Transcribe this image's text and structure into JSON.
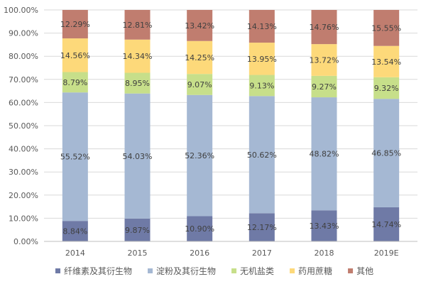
{
  "chart_data": {
    "type": "bar",
    "stacked": true,
    "percent": true,
    "title": "",
    "xlabel": "",
    "ylabel": "",
    "ylim": [
      0,
      100
    ],
    "y_ticks": [
      "0.00%",
      "10.00%",
      "20.00%",
      "30.00%",
      "40.00%",
      "50.00%",
      "60.00%",
      "70.00%",
      "80.00%",
      "90.00%",
      "100.00%"
    ],
    "categories": [
      "2014",
      "2015",
      "2016",
      "2017",
      "2018",
      "2019E"
    ],
    "grid": true,
    "legend_position": "bottom",
    "series": [
      {
        "name": "纤维素及其衍生物",
        "color": "#6f7aa6",
        "values": [
          8.84,
          9.87,
          10.9,
          12.17,
          13.43,
          14.74
        ],
        "labels": [
          "8.84%",
          "9.87%",
          "10.90%",
          "12.17%",
          "13.43%",
          "14.74%"
        ]
      },
      {
        "name": "淀粉及其衍生物",
        "color": "#a5b8d3",
        "values": [
          55.52,
          54.03,
          52.36,
          50.62,
          48.82,
          46.85
        ],
        "labels": [
          "55.52%",
          "54.03%",
          "52.36%",
          "50.62%",
          "48.82%",
          "46.85%"
        ]
      },
      {
        "name": "无机盐类",
        "color": "#c7df8a",
        "values": [
          8.79,
          8.95,
          9.07,
          9.13,
          9.27,
          9.32
        ],
        "labels": [
          "8.79%",
          "8.95%",
          "9.07%",
          "9.13%",
          "9.27%",
          "9.32%"
        ]
      },
      {
        "name": "药用蔗糖",
        "color": "#fdd97a",
        "values": [
          14.56,
          14.34,
          14.25,
          13.95,
          13.72,
          13.54
        ],
        "labels": [
          "14.56%",
          "14.34%",
          "14.25%",
          "13.95%",
          "13.72%",
          "13.54%"
        ]
      },
      {
        "name": "其他",
        "color": "#c07d6f",
        "values": [
          12.29,
          12.81,
          13.42,
          14.13,
          14.76,
          15.55
        ],
        "labels": [
          "12.29%",
          "12.81%",
          "13.42%",
          "14.13%",
          "14.76%",
          "15.55%"
        ]
      }
    ]
  }
}
